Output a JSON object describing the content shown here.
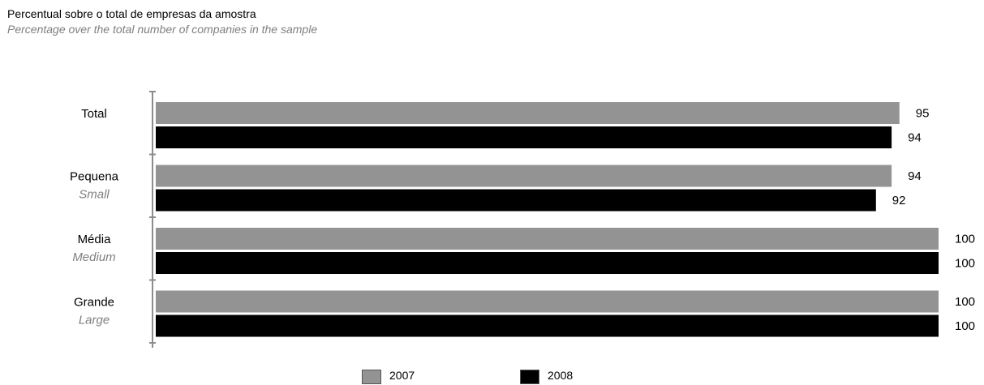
{
  "title": "Percentual sobre o total de empresas da amostra",
  "subtitle": "Percentage over the total number of companies in the sample",
  "colors": {
    "series_2007": "#939393",
    "series_2008": "#000000",
    "axis": "#8c8c8c",
    "secondary_text": "#7f7f7f"
  },
  "chart_data": {
    "type": "bar",
    "orientation": "horizontal",
    "title": "Percentual sobre o total de empresas da amostra",
    "subtitle": "Percentage over the total number of companies in the sample",
    "categories": [
      {
        "label": "Total",
        "sublabel": ""
      },
      {
        "label": "Pequena",
        "sublabel": "Small"
      },
      {
        "label": "Média",
        "sublabel": "Medium"
      },
      {
        "label": "Grande",
        "sublabel": "Large"
      }
    ],
    "series": [
      {
        "name": "2007",
        "color": "#939393",
        "values": [
          95,
          94,
          100,
          100
        ]
      },
      {
        "name": "2008",
        "color": "#000000",
        "values": [
          94,
          92,
          100,
          100
        ]
      }
    ],
    "xlim": [
      0,
      100
    ],
    "grid": false,
    "legend_position": "bottom-center",
    "data_labels": true
  }
}
